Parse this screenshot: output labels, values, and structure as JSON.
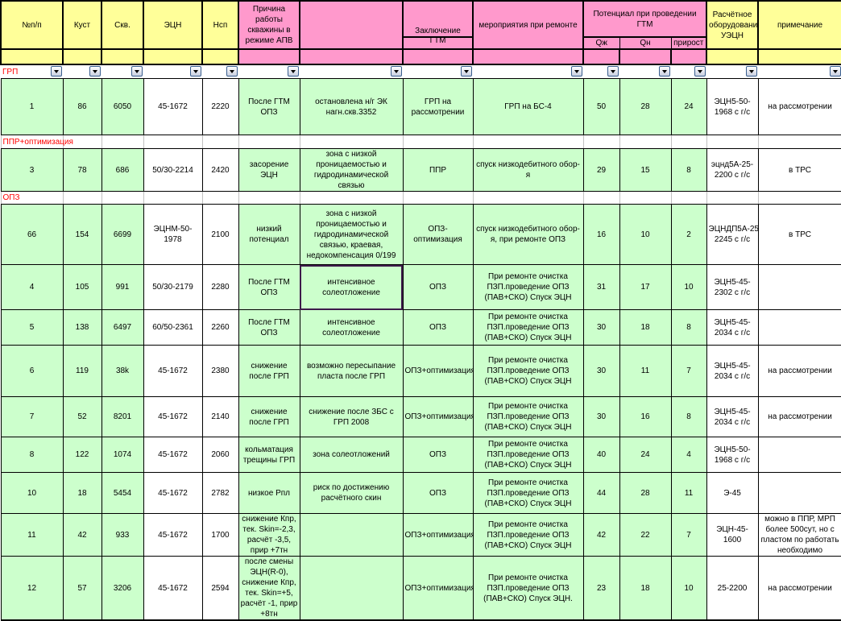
{
  "headers": {
    "num": "№п/п",
    "kust": "Куст",
    "skv": "Скв.",
    "ecn": "ЭЦН",
    "nsp": "Нсп",
    "reason": "Причина работы скважины в режиме АПВ",
    "col7": "",
    "conclusion_top": "Заключение",
    "conclusion_bottom": "ГТМ",
    "measures": "мероприятия при ремонте",
    "potential": "Потенциал при проведении ГТМ",
    "qzh": "Qж",
    "qn": "Qн",
    "growth": "прирост",
    "equipment": "Расчётное оборудование УЭЦН",
    "note": "примечание"
  },
  "filter_section_label": "ГРП",
  "colors": {
    "header_yellow": "#ffff99",
    "header_pink": "#ff99cc",
    "cell_green": "#ccffcc",
    "section_red": "#ff0000"
  },
  "rows": [
    {
      "cells": [
        "1",
        "86",
        "6050",
        "45-1672",
        "2220",
        "После ГТМ ОПЗ",
        "остановлена н/г ЭК нагн.скв.3352",
        "ГРП на рассмотрении",
        "ГРП на БС-4",
        "50",
        "28",
        "24",
        "ЭЦН5-50-1968 с г/с",
        "на рассмотрении"
      ]
    },
    {
      "section": "ППР+оптимизация"
    },
    {
      "cells": [
        "3",
        "78",
        "686",
        "50/30-2214",
        "2420",
        "засорение ЭЦН",
        "зона с низкой проницаемостью и гидродинамической связью",
        "ППР",
        "спуск низкодебитного обор-я",
        "29",
        "15",
        "8",
        "эцнд5А-25-2200 с г/с",
        "в ТРС"
      ]
    },
    {
      "section": "ОПЗ"
    },
    {
      "cells": [
        "66",
        "154",
        "6699",
        "ЭЦНМ-50-1978",
        "2100",
        "низкий потенциал",
        "зона с низкой проницаемостью и гидродинамической связью, краевая, недокомпенсация 0/199",
        "ОПЗ-оптимизация",
        "спуск низкодебитного обор-я, при ремонте ОПЗ",
        "16",
        "10",
        "2",
        "ЭЦНДП5А-25-2245 с г/с",
        "в ТРС"
      ]
    },
    {
      "cells": [
        "4",
        "105",
        "991",
        "50/30-2179",
        "2280",
        "После ГТМ ОПЗ",
        "интенсивное солеотложение",
        "ОПЗ",
        "При ремонте очистка ПЗП.проведение ОПЗ (ПАВ+СКО) Спуск ЭЦН",
        "31",
        "17",
        "10",
        "ЭЦН5-45-2302 с г/с",
        ""
      ],
      "selected": 6
    },
    {
      "cells": [
        "5",
        "138",
        "6497",
        "60/50-2361",
        "2260",
        "После ГТМ ОПЗ",
        "интенсивное солеотложение",
        "ОПЗ",
        "При ремонте очистка ПЗП.проведение ОПЗ (ПАВ+СКО) Спуск ЭЦН",
        "30",
        "18",
        "8",
        "ЭЦН5-45-2034 с г/с",
        ""
      ]
    },
    {
      "cells": [
        "6",
        "119",
        "38k",
        "45-1672",
        "2380",
        "снижение после ГРП",
        "возможно пересыпание пласта после ГРП",
        "ОПЗ+оптимизация",
        "При ремонте очистка ПЗП.проведение ОПЗ (ПАВ+СКО) Спуск ЭЦН",
        "30",
        "11",
        "7",
        "ЭЦН5-45-2034 с г/с",
        "на рассмотрении"
      ]
    },
    {
      "cells": [
        "7",
        "52",
        "8201",
        "45-1672",
        "2140",
        "снижение после ГРП",
        "снижение после ЗБС с ГРП 2008",
        "ОПЗ+оптимизация",
        "При ремонте очистка ПЗП.проведение ОПЗ (ПАВ+СКО) Спуск ЭЦН",
        "30",
        "16",
        "8",
        "ЭЦН5-45-2034 с г/с",
        "на рассмотрении"
      ]
    },
    {
      "cells": [
        "8",
        "122",
        "1074",
        "45-1672",
        "2060",
        "кольматация трещины ГРП",
        "зона солеотложений",
        "ОПЗ",
        "При ремонте очистка ПЗП.проведение ОПЗ (ПАВ+СКО) Спуск ЭЦН",
        "40",
        "24",
        "4",
        "ЭЦН5-50-1968 с г/с",
        ""
      ]
    },
    {
      "cells": [
        "10",
        "18",
        "5454",
        "45-1672",
        "2782",
        "низкое Рпл",
        "риск по достижению расчётного скин",
        "ОПЗ",
        "При ремонте очистка ПЗП.проведение ОПЗ (ПАВ+СКО) Спуск ЭЦН",
        "44",
        "28",
        "11",
        "Э-45",
        ""
      ]
    },
    {
      "cells": [
        "11",
        "42",
        "933",
        "45-1672",
        "1700",
        "снижение Кпр, тек. Skin=-2,3, расчёт -3,5, прир +7тн",
        "",
        "ОПЗ+оптимизация",
        "При ремонте очистка ПЗП.проведение ОПЗ (ПАВ+СКО) Спуск ЭЦН",
        "42",
        "22",
        "7",
        "ЭЦН-45-1600",
        "можно в ППР, МРП более 500сут, но с пластом по работать необходимо"
      ]
    },
    {
      "cells": [
        "12",
        "57",
        "3206",
        "45-1672",
        "2594",
        "после смены ЭЦН(R-0), снижение Кпр, тек. Skin=+5, расчёт -1, прир +8тн",
        "",
        "ОПЗ+оптимизация",
        "При ремонте очистка ПЗП.проведение ОПЗ (ПАВ+СКО) Спуск ЭЦН.",
        "23",
        "18",
        "10",
        "25-2200",
        "на рассмотрении"
      ]
    }
  ]
}
